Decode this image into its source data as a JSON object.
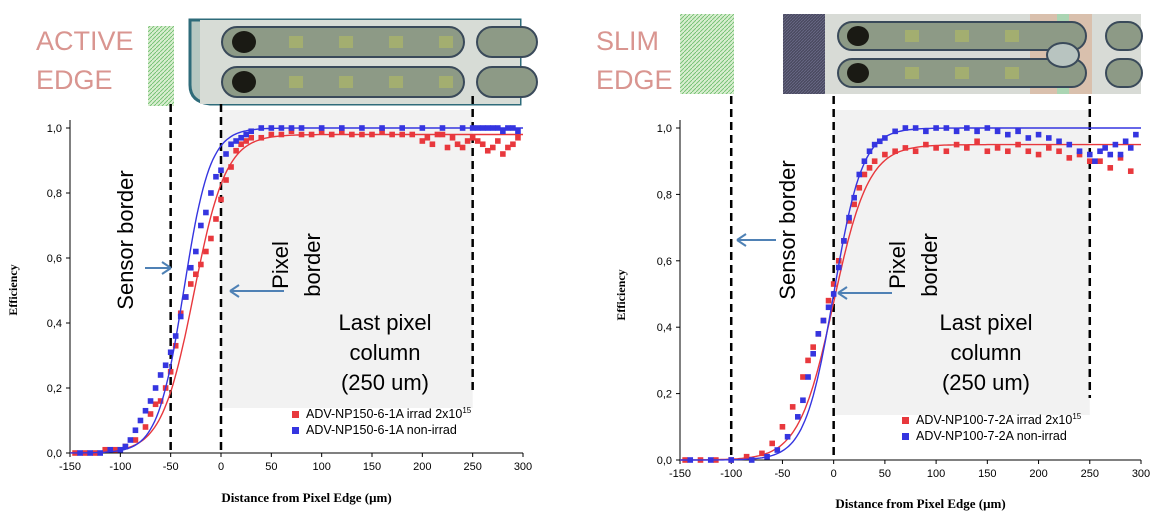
{
  "chart_data": [
    {
      "type": "scatter",
      "header_label": [
        "ACTIVE",
        "EDGE"
      ],
      "xlabel": "Distance from Pixel Edge (μm)",
      "ylabel": "Efficiency",
      "xlim": [
        -150,
        300
      ],
      "ylim": [
        0,
        1
      ],
      "x_ticks": [
        "-150",
        "-100",
        "-50",
        "0",
        "50",
        "100",
        "150",
        "200",
        "250",
        "300"
      ],
      "y_ticks": [
        "0,0",
        "0,2",
        "0,4",
        "0,6",
        "0,8",
        "1,0"
      ],
      "vlines": [
        -50,
        0,
        250
      ],
      "shaded_region": [
        0,
        250
      ],
      "annotations": {
        "sensor_border": "Sensor border",
        "pixel_border": [
          "Pixel",
          "border"
        ],
        "last_pixel": [
          "Last pixel",
          "column",
          "(250 um)"
        ]
      },
      "legend_position": "bottom-right",
      "series": [
        {
          "name": "ADV-NP150-6-1A irrad 2x10",
          "superscript": "15",
          "color": "#e8383d",
          "fit_center": -27,
          "fit_width": 16,
          "fit_plateau": 0.98,
          "x": [
            -145,
            -135,
            -125,
            -115,
            -105,
            -95,
            -85,
            -75,
            -70,
            -65,
            -60,
            -55,
            -50,
            -45,
            -40,
            -35,
            -30,
            -25,
            -20,
            -15,
            -10,
            -5,
            0,
            5,
            10,
            15,
            20,
            25,
            30,
            40,
            50,
            60,
            70,
            80,
            90,
            100,
            110,
            120,
            130,
            140,
            150,
            160,
            170,
            180,
            190,
            200,
            205,
            210,
            215,
            220,
            225,
            230,
            235,
            240,
            245,
            250,
            255,
            260,
            265,
            270,
            275,
            280,
            285,
            290,
            295
          ],
          "y": [
            0.0,
            0.0,
            0.0,
            0.01,
            0.01,
            0.02,
            0.04,
            0.08,
            0.12,
            0.15,
            0.16,
            0.2,
            0.25,
            0.33,
            0.43,
            0.48,
            0.52,
            0.55,
            0.58,
            0.62,
            0.66,
            0.72,
            0.78,
            0.84,
            0.88,
            0.93,
            0.95,
            0.96,
            0.97,
            0.97,
            0.98,
            0.98,
            0.99,
            0.98,
            0.98,
            0.99,
            0.98,
            0.99,
            0.98,
            0.98,
            0.98,
            0.99,
            0.98,
            0.98,
            0.98,
            0.96,
            0.97,
            0.95,
            0.98,
            0.98,
            0.94,
            0.97,
            0.95,
            0.94,
            0.96,
            0.97,
            0.96,
            0.95,
            0.93,
            0.94,
            0.96,
            0.92,
            0.94,
            0.95,
            0.97
          ]
        },
        {
          "name": "ADV-NP150-6-1A non-irrad",
          "color": "#3535e0",
          "fit_center": -37,
          "fit_width": 13,
          "fit_plateau": 1.0,
          "x": [
            -140,
            -130,
            -120,
            -110,
            -100,
            -95,
            -90,
            -85,
            -80,
            -75,
            -70,
            -65,
            -60,
            -55,
            -50,
            -45,
            -40,
            -35,
            -30,
            -25,
            -20,
            -15,
            -10,
            -5,
            0,
            5,
            10,
            15,
            20,
            25,
            30,
            40,
            50,
            60,
            70,
            80,
            100,
            120,
            140,
            160,
            180,
            200,
            220,
            240,
            250,
            255,
            260,
            265,
            270,
            275,
            280,
            285,
            290,
            295
          ],
          "y": [
            0.0,
            0.0,
            0.0,
            0.01,
            0.01,
            0.02,
            0.04,
            0.07,
            0.1,
            0.13,
            0.16,
            0.2,
            0.24,
            0.27,
            0.31,
            0.36,
            0.42,
            0.48,
            0.57,
            0.62,
            0.7,
            0.74,
            0.8,
            0.85,
            0.87,
            0.92,
            0.95,
            0.96,
            0.97,
            0.98,
            0.99,
            1.0,
            1.0,
            1.0,
            1.0,
            1.0,
            1.0,
            1.0,
            1.0,
            1.0,
            1.0,
            1.0,
            1.0,
            1.0,
            1.0,
            1.0,
            1.0,
            1.0,
            1.0,
            1.0,
            0.99,
            1.0,
            1.0,
            0.99
          ]
        }
      ]
    },
    {
      "type": "scatter",
      "header_label": [
        "SLIM",
        "EDGE"
      ],
      "xlabel": "Distance from Pixel Edge (μm)",
      "ylabel": "Efficiency",
      "xlim": [
        -150,
        300
      ],
      "ylim": [
        0,
        1
      ],
      "x_ticks": [
        "-150",
        "-100",
        "-50",
        "0",
        "50",
        "100",
        "150",
        "200",
        "250",
        "300"
      ],
      "y_ticks": [
        "0,0",
        "0,2",
        "0,4",
        "0,6",
        "0,8",
        "1,0"
      ],
      "vlines": [
        -100,
        0,
        250
      ],
      "shaded_region": [
        0,
        250
      ],
      "annotations": {
        "sensor_border": "Sensor border",
        "pixel_border": [
          "Pixel",
          "border"
        ],
        "last_pixel": [
          "Last pixel",
          "column",
          "(250 um)"
        ]
      },
      "legend_position": "bottom-right",
      "series": [
        {
          "name": "ADV-NP100-7-2A irrad 2x10",
          "superscript": "15",
          "color": "#e8383d",
          "fit_center": 0,
          "fit_width": 17,
          "fit_plateau": 0.95,
          "x": [
            -145,
            -130,
            -115,
            -100,
            -85,
            -70,
            -60,
            -50,
            -40,
            -30,
            -25,
            -20,
            -15,
            -10,
            -5,
            0,
            5,
            10,
            15,
            20,
            25,
            30,
            35,
            40,
            50,
            60,
            70,
            80,
            90,
            100,
            110,
            120,
            130,
            140,
            150,
            160,
            170,
            180,
            190,
            200,
            210,
            220,
            230,
            240,
            250,
            260,
            270,
            280,
            290
          ],
          "y": [
            0.0,
            0.0,
            0.0,
            0.0,
            0.01,
            0.02,
            0.05,
            0.1,
            0.16,
            0.25,
            0.3,
            0.34,
            0.38,
            0.42,
            0.48,
            0.53,
            0.6,
            0.66,
            0.72,
            0.77,
            0.82,
            0.86,
            0.88,
            0.9,
            0.92,
            0.93,
            0.94,
            0.93,
            0.95,
            0.94,
            0.93,
            0.95,
            0.94,
            0.96,
            0.93,
            0.94,
            0.93,
            0.95,
            0.93,
            0.92,
            0.94,
            0.93,
            0.91,
            0.92,
            0.9,
            0.9,
            0.88,
            0.91,
            0.87
          ]
        },
        {
          "name": "ADV-NP100-7-2A non-irrad",
          "color": "#3535e0",
          "fit_center": 0,
          "fit_width": 14,
          "fit_plateau": 1.0,
          "x": [
            -140,
            -120,
            -100,
            -80,
            -65,
            -55,
            -45,
            -35,
            -30,
            -25,
            -20,
            -15,
            -10,
            -5,
            0,
            5,
            10,
            15,
            20,
            25,
            30,
            35,
            40,
            45,
            50,
            60,
            70,
            80,
            90,
            100,
            110,
            120,
            130,
            140,
            150,
            160,
            170,
            180,
            190,
            200,
            210,
            220,
            230,
            240,
            250,
            255,
            260,
            265,
            270,
            275,
            280,
            285,
            290,
            295
          ],
          "y": [
            0.0,
            0.0,
            0.0,
            0.0,
            0.01,
            0.03,
            0.07,
            0.13,
            0.18,
            0.25,
            0.32,
            0.38,
            0.42,
            0.46,
            0.5,
            0.58,
            0.66,
            0.73,
            0.79,
            0.86,
            0.9,
            0.93,
            0.95,
            0.96,
            0.97,
            0.99,
            1.0,
            1.0,
            0.99,
            1.0,
            1.0,
            0.99,
            1.0,
            0.99,
            1.0,
            0.99,
            0.98,
            0.99,
            0.97,
            0.98,
            0.97,
            0.96,
            0.95,
            0.93,
            0.92,
            0.9,
            0.93,
            0.94,
            0.92,
            0.95,
            0.92,
            0.96,
            0.94,
            0.98
          ]
        }
      ]
    }
  ]
}
